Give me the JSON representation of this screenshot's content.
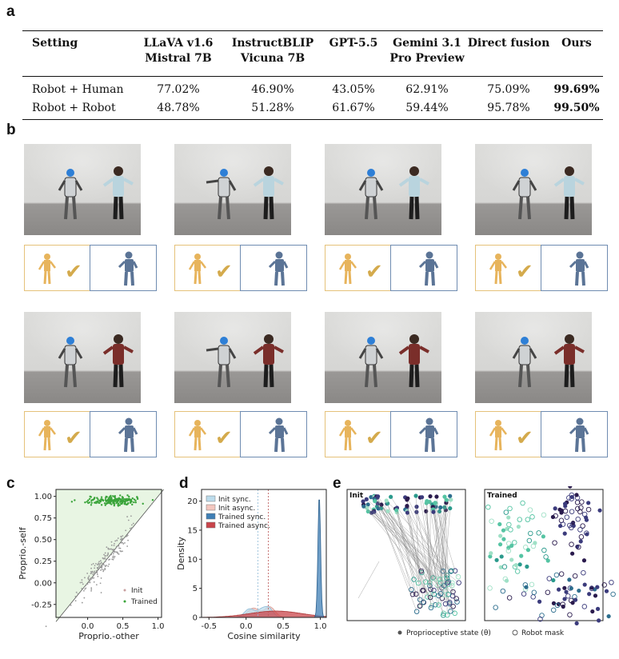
{
  "panels": {
    "a": "a",
    "b": "b",
    "c": "c",
    "d": "d",
    "e": "e"
  },
  "table": {
    "headers": [
      [
        "Setting"
      ],
      [
        "LLaVA v1.6",
        "Mistral 7B"
      ],
      [
        "InstructBLIP",
        "Vicuna 7B"
      ],
      [
        "GPT-5.5"
      ],
      [
        "Gemini 3.1",
        "Pro Preview"
      ],
      [
        "Direct fusion"
      ],
      [
        "Ours"
      ]
    ],
    "rows": [
      {
        "setting": "Robot + Human",
        "values": [
          "77.02%",
          "46.90%",
          "43.05%",
          "62.91%",
          "75.09%",
          "99.69%"
        ]
      },
      {
        "setting": "Robot + Robot",
        "values": [
          "48.78%",
          "51.28%",
          "61.67%",
          "59.44%",
          "95.78%",
          "99.50%"
        ]
      }
    ]
  },
  "photos": {
    "shirt_colors": [
      "#b9d4de",
      "#7a2e2a"
    ],
    "check_icon": "check-icon",
    "check_glyph": "✔"
  },
  "chart_c": {
    "type": "scatter",
    "xlabel": "Proprio.-other",
    "ylabel": "Proprio.-self",
    "x_ticks": [
      "0.0",
      "0.5",
      "1.0"
    ],
    "y_ticks": [
      "-0.25",
      "0.00",
      "0.25",
      "0.50",
      "0.75",
      "1.00"
    ],
    "xlim": [
      -0.45,
      1.05
    ],
    "ylim": [
      -0.4,
      1.08
    ],
    "legend": [
      "Init",
      "Trained"
    ],
    "colors": {
      "init": "#c9a0a0",
      "trained": "#3aa43a",
      "fill": "#e8f5e3"
    }
  },
  "chart_d": {
    "type": "area",
    "xlabel": "Cosine similarity",
    "ylabel": "Density",
    "x_ticks": [
      "-0.5",
      "0.0",
      "0.5",
      "1.0"
    ],
    "y_ticks": [
      "0",
      "5",
      "10",
      "15",
      "20"
    ],
    "xlim": [
      -0.6,
      1.08
    ],
    "ylim": [
      0,
      22
    ],
    "legend": [
      "Init sync.",
      "Init async.",
      "Trained sync.",
      "Trained async."
    ],
    "colors": {
      "init_sync": "#bcdcec",
      "init_async": "#f4c7bf",
      "trained_sync": "#3f7fb5",
      "trained_async": "#c9454b"
    }
  },
  "chart_e": {
    "left_title": "Init",
    "right_title": "Trained",
    "legend": [
      "Proprioceptive state (θ)",
      "Robot mask"
    ]
  }
}
